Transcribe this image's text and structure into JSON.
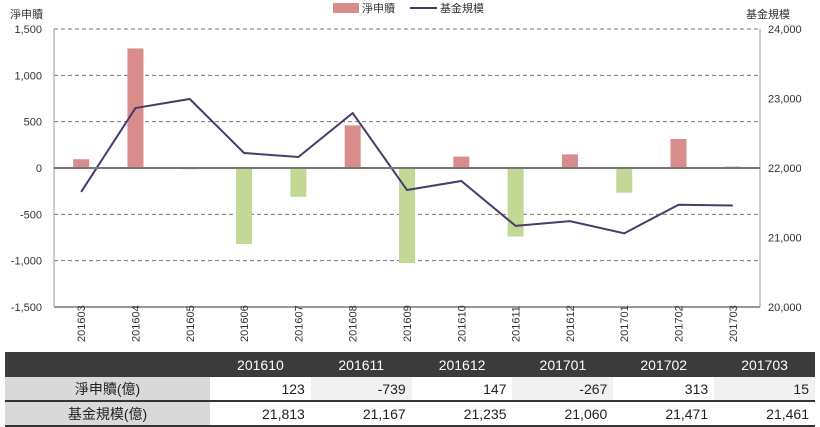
{
  "chart_data": {
    "type": "bar+line",
    "categories": [
      "201603",
      "201604",
      "201605",
      "201606",
      "201607",
      "201608",
      "201609",
      "201610",
      "201611",
      "201612",
      "201701",
      "201702",
      "201703"
    ],
    "series": [
      {
        "name": "淨申贖",
        "type": "bar",
        "axis": "left",
        "values": [
          95,
          1290,
          -15,
          -820,
          -310,
          460,
          -1025,
          123,
          -739,
          147,
          -267,
          313,
          15
        ]
      },
      {
        "name": "基金規模",
        "type": "line",
        "axis": "right",
        "values": [
          21655,
          22863,
          22993,
          22216,
          22158,
          22791,
          21683,
          21813,
          21167,
          21235,
          21060,
          21471,
          21461
        ]
      }
    ],
    "ylabel_left": "淨申贖",
    "ylabel_right": "基金規模",
    "ylim_left": [
      -1500,
      1500
    ],
    "ylim_right": [
      20000,
      24000
    ],
    "yticks_left": [
      "1,500",
      "1,000",
      "500",
      "0",
      "-500",
      "-1,000",
      "-1,500"
    ],
    "yticks_right": [
      "24,000",
      "23,000",
      "22,000",
      "21,000",
      "20,000"
    ],
    "grid": "dashed horizontal",
    "legend": "top-center",
    "colors": {
      "positive": "#d98c8c",
      "negative": "#c4d895",
      "line": "#4b3b6b"
    }
  },
  "table": {
    "headers": [
      "",
      "201610",
      "201611",
      "201612",
      "201701",
      "201702",
      "201703"
    ],
    "rows": [
      {
        "label": "淨申贖(億)",
        "values": [
          "123",
          "-739",
          "147",
          "-267",
          "313",
          "15"
        ]
      },
      {
        "label": "基金規模(億)",
        "values": [
          "21,813",
          "21,167",
          "21,235",
          "21,060",
          "21,471",
          "21,461"
        ]
      }
    ]
  }
}
